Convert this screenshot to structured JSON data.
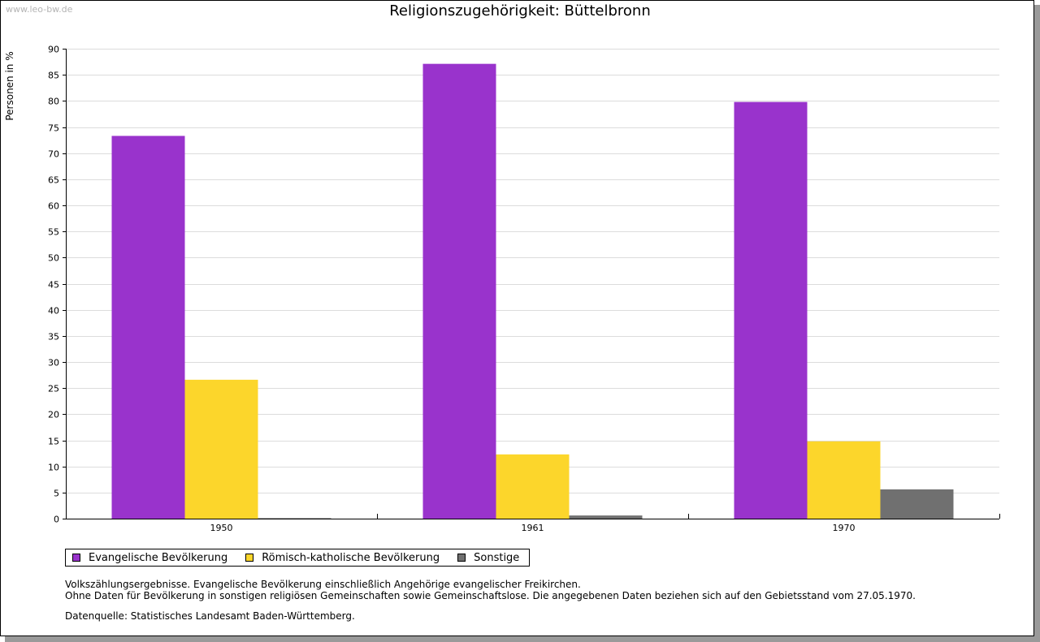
{
  "watermark": "www.leo-bw.de",
  "chart_data": {
    "type": "bar",
    "title": "Religionszugehörigkeit: Büttelbronn",
    "xlabel": "",
    "ylabel": "Personen in %",
    "ylim": [
      0,
      90
    ],
    "ytick_step": 5,
    "grid": true,
    "categories": [
      "1950",
      "1961",
      "1970"
    ],
    "series": [
      {
        "name": "Evangelische Bevölkerung",
        "color": "#9933cc",
        "values": [
          73.3,
          87.1,
          79.8
        ]
      },
      {
        "name": "Römisch-katholische Bevölkerung",
        "color": "#fcd62b",
        "values": [
          26.6,
          12.3,
          14.8
        ]
      },
      {
        "name": "Sonstige",
        "color": "#707070",
        "values": [
          0.1,
          0.6,
          5.6
        ]
      }
    ],
    "legend_position": "bottom-left"
  },
  "notes": {
    "line1": "Volkszählungsergebnisse. Evangelische Bevölkerung einschließlich Angehörige evangelischer Freikirchen.",
    "line2": "Ohne Daten für Bevölkerung in sonstigen religiösen Gemeinschaften sowie Gemeinschaftslose. Die angegebenen Daten beziehen sich auf den Gebietsstand vom 27.05.1970."
  },
  "source": "Datenquelle: Statistisches Landesamt Baden-Württemberg."
}
